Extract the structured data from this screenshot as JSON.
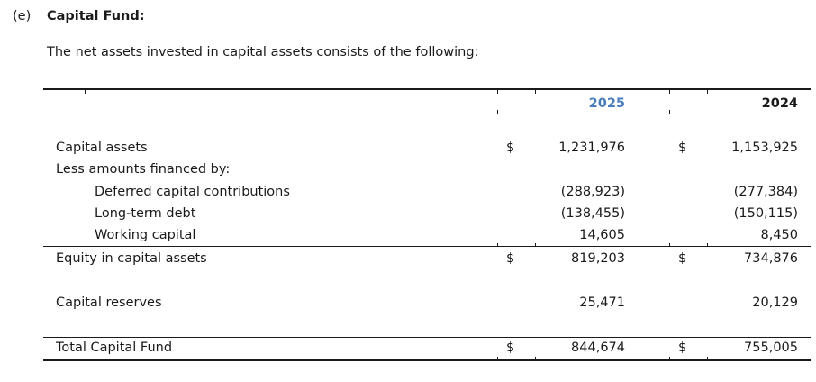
{
  "section": {
    "number": "(e)",
    "title": "Capital Fund:",
    "intro": "The net assets invested in capital assets consists of the following:"
  },
  "table": {
    "headers": {
      "current_year": "2025",
      "prior_year": "2024"
    },
    "rows": [
      {
        "label": "Capital assets",
        "dollar1": "$",
        "v1": "1,231,976",
        "dollar2": "$",
        "v2": "1,153,925"
      },
      {
        "label": "Less amounts financed by:",
        "dollar1": "",
        "v1": "",
        "dollar2": "",
        "v2": ""
      },
      {
        "label": "Deferred capital contributions",
        "dollar1": "",
        "v1": "(288,923)",
        "dollar2": "",
        "v2": "(277,384)"
      },
      {
        "label": "Long-term debt",
        "dollar1": "",
        "v1": "(138,455)",
        "dollar2": "",
        "v2": "(150,115)"
      },
      {
        "label": "Working capital",
        "dollar1": "",
        "v1": "14,605",
        "dollar2": "",
        "v2": "8,450"
      },
      {
        "label": "Equity in capital assets",
        "dollar1": "$",
        "v1": "819,203",
        "dollar2": "$",
        "v2": "734,876"
      },
      {
        "label": "Capital reserves",
        "dollar1": "",
        "v1": "25,471",
        "dollar2": "",
        "v2": "20,129"
      },
      {
        "label": "Total Capital Fund",
        "dollar1": "$",
        "v1": "844,674",
        "dollar2": "$",
        "v2": "755,005"
      }
    ]
  }
}
